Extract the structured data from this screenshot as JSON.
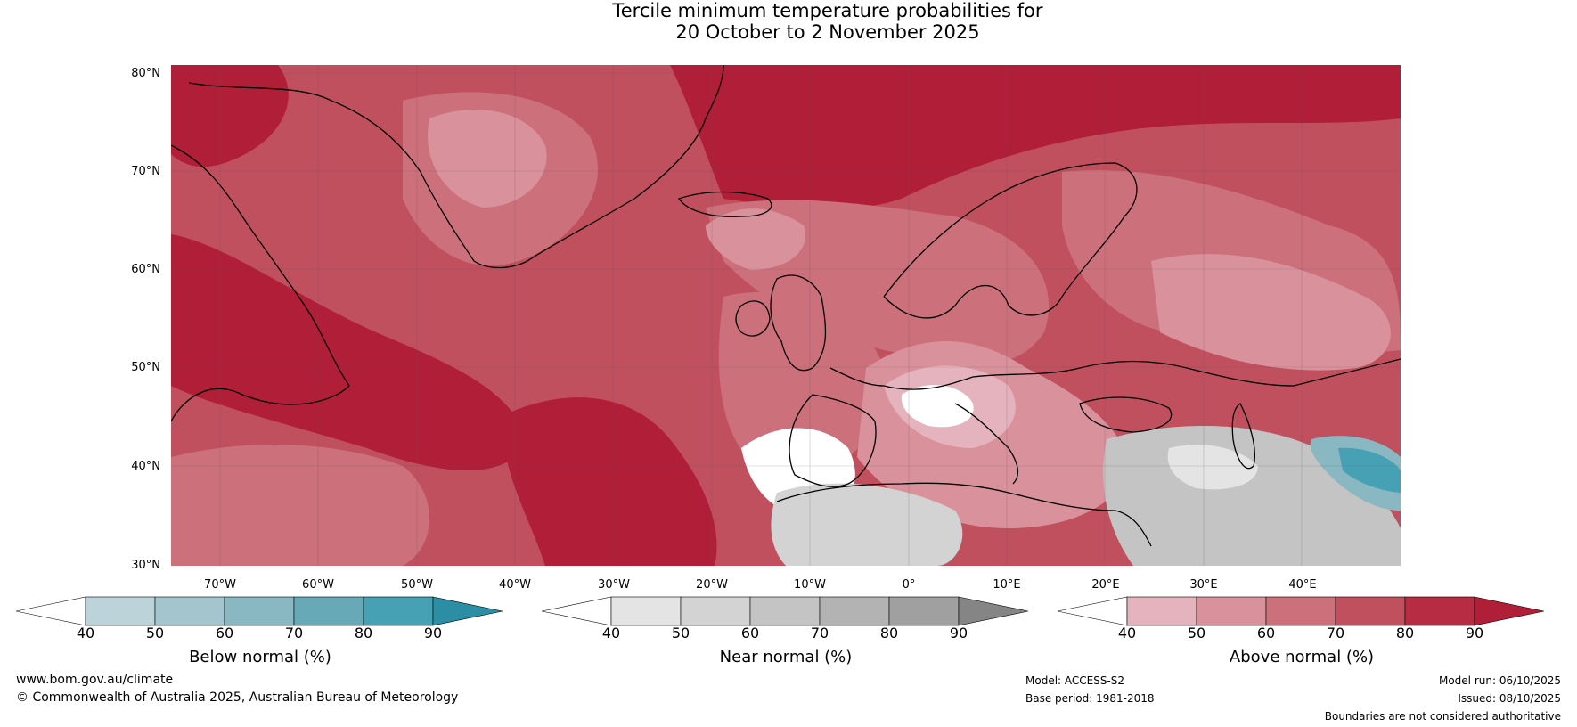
{
  "title": {
    "line1": "Tercile minimum temperature probabilities for",
    "line2": "20 October to 2 November 2025"
  },
  "map": {
    "lat_labels": [
      "80°N",
      "70°N",
      "60°N",
      "50°N",
      "40°N",
      "30°N"
    ],
    "lon_labels": [
      "70°W",
      "60°W",
      "50°W",
      "40°W",
      "30°W",
      "20°W",
      "10°W",
      "0°",
      "10°E",
      "20°E",
      "30°E",
      "40°E"
    ]
  },
  "colorbars": [
    {
      "label": "Below normal (%)",
      "ticks": [
        "40",
        "50",
        "60",
        "70",
        "80",
        "90"
      ],
      "colors": [
        "#ffffff",
        "#bcd3d9",
        "#a4c5cd",
        "#89b8c3",
        "#68a9b8",
        "#47a1b4",
        "#2b8ea4"
      ]
    },
    {
      "label": "Near normal (%)",
      "ticks": [
        "40",
        "50",
        "60",
        "70",
        "80",
        "90"
      ],
      "colors": [
        "#ffffff",
        "#e4e4e4",
        "#d3d3d3",
        "#c4c4c4",
        "#b3b3b3",
        "#a0a0a0",
        "#858585"
      ]
    },
    {
      "label": "Above normal (%)",
      "ticks": [
        "40",
        "50",
        "60",
        "70",
        "80",
        "90"
      ],
      "colors": [
        "#ffffff",
        "#e5b3bd",
        "#d9919c",
        "#cc707c",
        "#c1505f",
        "#b72c42",
        "#b11e37"
      ]
    }
  ],
  "footer": {
    "website": "www.bom.gov.au/climate",
    "copyright": "© Commonwealth of Australia 2025, Australian Bureau of Meteorology",
    "model": "Model: ACCESS-S2",
    "base_period": "Base period: 1981-2018",
    "model_run": "Model run: 06/10/2025",
    "issued": "Issued: 08/10/2025",
    "disclaimer": "Boundaries are not considered authoritative"
  }
}
